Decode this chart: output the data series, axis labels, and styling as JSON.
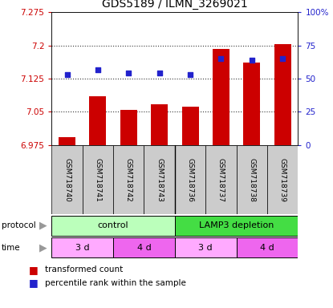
{
  "title": "GDS5189 / ILMN_3269021",
  "samples": [
    "GSM718740",
    "GSM718741",
    "GSM718742",
    "GSM718743",
    "GSM718736",
    "GSM718737",
    "GSM718738",
    "GSM718739"
  ],
  "bar_values": [
    6.992,
    7.085,
    7.055,
    7.067,
    7.062,
    7.192,
    7.162,
    7.204
  ],
  "percentile_values": [
    53,
    57,
    54,
    54,
    53,
    65,
    64,
    65
  ],
  "ymin": 6.975,
  "ymax": 7.275,
  "yticks": [
    6.975,
    7.05,
    7.125,
    7.2,
    7.275
  ],
  "ytick_labels": [
    "6.975",
    "7.05",
    "7.125",
    "7.2",
    "7.275"
  ],
  "y2min": 0,
  "y2max": 100,
  "y2ticks": [
    0,
    25,
    50,
    75,
    100
  ],
  "y2tick_labels": [
    "0",
    "25",
    "50",
    "75",
    "100%"
  ],
  "bar_color": "#cc0000",
  "dot_color": "#2222cc",
  "protocol_groups": [
    {
      "label": "control",
      "start": 0,
      "end": 4,
      "color": "#bbffbb"
    },
    {
      "label": "LAMP3 depletion",
      "start": 4,
      "end": 8,
      "color": "#44dd44"
    }
  ],
  "time_groups": [
    {
      "label": "3 d",
      "start": 0,
      "end": 2,
      "color": "#ffaaff"
    },
    {
      "label": "4 d",
      "start": 2,
      "end": 4,
      "color": "#ee66ee"
    },
    {
      "label": "3 d",
      "start": 4,
      "end": 6,
      "color": "#ffaaff"
    },
    {
      "label": "4 d",
      "start": 6,
      "end": 8,
      "color": "#ee66ee"
    }
  ],
  "legend_bar_label": "transformed count",
  "legend_dot_label": "percentile rank within the sample",
  "bar_width": 0.55,
  "sample_box_color": "#cccccc",
  "grid_color": "#333333",
  "grid_style": ":",
  "grid_linewidth": 0.8
}
